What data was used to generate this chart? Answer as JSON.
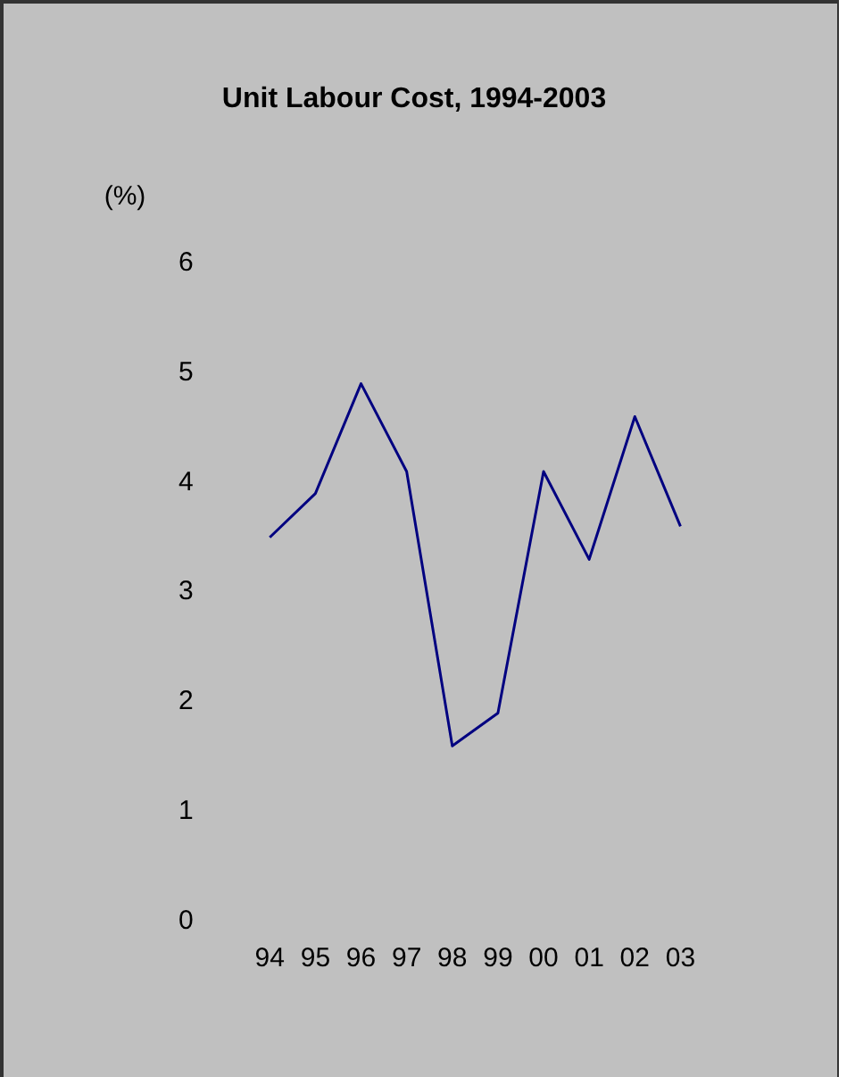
{
  "chart_data": {
    "type": "line",
    "title": "Unit Labour Cost, 1994-2003",
    "ylabel": "(%)",
    "categories": [
      "94",
      "95",
      "96",
      "97",
      "98",
      "99",
      "00",
      "01",
      "02",
      "03"
    ],
    "series": [
      {
        "color": "#000080",
        "values": [
          3.5,
          3.9,
          4.9,
          4.1,
          1.6,
          1.9,
          4.1,
          3.3,
          4.6,
          3.6
        ]
      }
    ],
    "ylim": [
      0,
      6
    ],
    "yticks": [
      0,
      1,
      2,
      3,
      4,
      5,
      6
    ],
    "grid": false,
    "legend": false,
    "marker": "none",
    "line_style": "solid"
  }
}
